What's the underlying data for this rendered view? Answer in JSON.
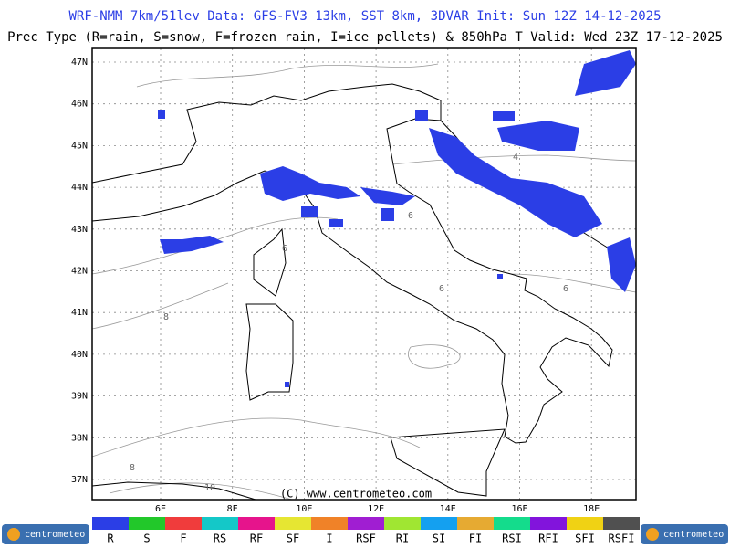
{
  "header": {
    "line1": "WRF-NMM 7km/51lev  Data: GFS-FV3 13km, SST 8km, 3DVAR  Init: Sun 12Z 14-12-2025",
    "line2": "Prec Type (R=rain, S=snow, F=frozen rain, I=ice pellets) & 850hPa T  Valid: Wed 23Z 17-12-2025"
  },
  "map": {
    "lat_labels": [
      "47N",
      "46N",
      "45N",
      "44N",
      "43N",
      "42N",
      "41N",
      "40N",
      "39N",
      "38N",
      "37N"
    ],
    "lon_labels": [
      "6E",
      "8E",
      "10E",
      "12E",
      "14E",
      "16E",
      "18E"
    ],
    "contour_labels": [
      "4",
      "6",
      "6",
      "6",
      "6",
      "8",
      "8",
      "10"
    ],
    "copyright": "(C) www.centrometeo.com"
  },
  "legend": {
    "items": [
      {
        "label": "R",
        "color": "#2b3ee6"
      },
      {
        "label": "S",
        "color": "#22c82a"
      },
      {
        "label": "F",
        "color": "#f03c3c"
      },
      {
        "label": "RS",
        "color": "#14c8c8"
      },
      {
        "label": "RF",
        "color": "#e6148c"
      },
      {
        "label": "SF",
        "color": "#e6e632"
      },
      {
        "label": "I",
        "color": "#f08228"
      },
      {
        "label": "RSF",
        "color": "#a01ed2"
      },
      {
        "label": "RI",
        "color": "#a0e632"
      },
      {
        "label": "SI",
        "color": "#14a0f0"
      },
      {
        "label": "FI",
        "color": "#e6aa32"
      },
      {
        "label": "RSI",
        "color": "#14dc8c"
      },
      {
        "label": "RFI",
        "color": "#8214dc"
      },
      {
        "label": "SFI",
        "color": "#f0d214"
      },
      {
        "label": "RSFI",
        "color": "#505050"
      }
    ]
  },
  "logos": [
    "centrometeo",
    "centrometeo"
  ]
}
